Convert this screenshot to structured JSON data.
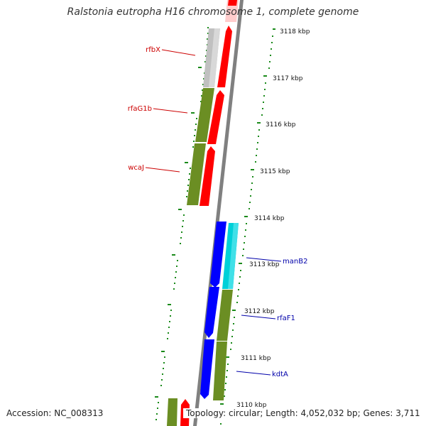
{
  "title": "Ralstonia eutropha H16 chromosome 1, complete genome",
  "footer": {
    "accession": "Accession: NC_008313",
    "stats": "Topology: circular; Length: 4,052,032 bp; Genes: 3,711"
  },
  "colors": {
    "red": "#ff0000",
    "olive": "#6b8e23",
    "gray": "#c0c0c0",
    "blue": "#0000ff",
    "cyan": "#00d0d8",
    "backbone": "#808080",
    "tick": "#1a8a1a",
    "label_red": "#cc0000",
    "label_blue": "#0000aa",
    "pink": "#ffcccc"
  },
  "ticks": [
    "3118 kbp",
    "3117 kbp",
    "3116 kbp",
    "3115 kbp",
    "3114 kbp",
    "3113 kbp",
    "3112 kbp",
    "3111 kbp",
    "3110 kbp"
  ],
  "labels": {
    "rfbX": "rfbX",
    "rfaG1b": "rfaG1b",
    "wcaJ": "wcaJ",
    "manB2": "manB2",
    "rfaF1": "rfaF1",
    "kdtA": "kdtA"
  }
}
